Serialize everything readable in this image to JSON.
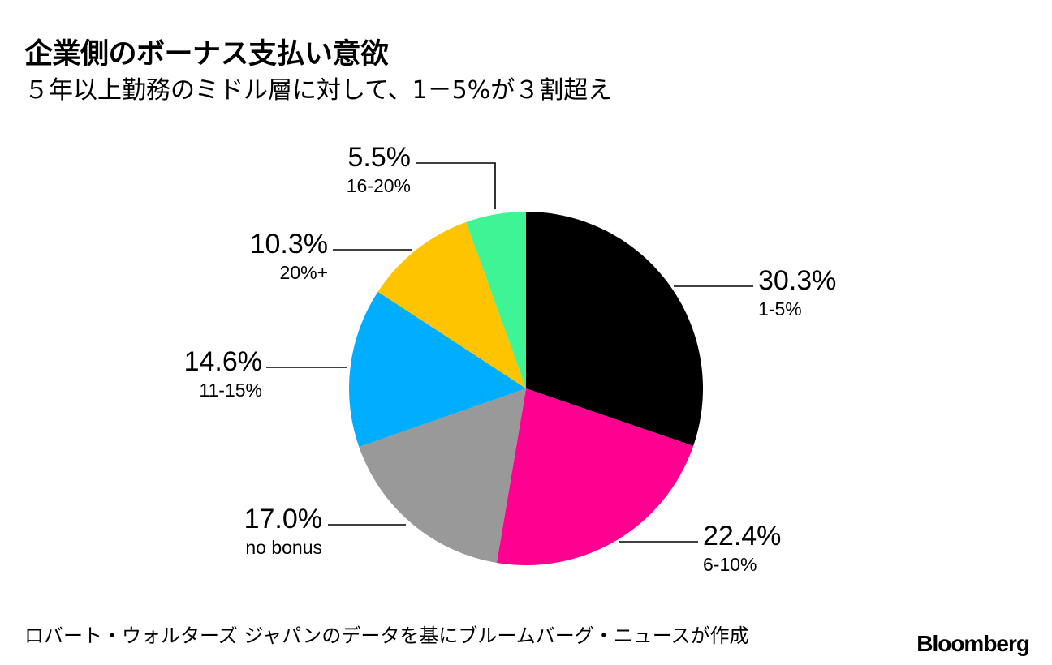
{
  "header": {
    "title": "企業側のボーナス支払い意欲",
    "subtitle": "５年以上勤務のミドル層に対して、1－5%が３割超え"
  },
  "chart_data": {
    "type": "pie",
    "start": "12 o'clock",
    "direction": "clockwise",
    "slices": [
      {
        "category": "1-5%",
        "value": 30.3,
        "label": "30.3%",
        "color": "#000000"
      },
      {
        "category": "6-10%",
        "value": 22.4,
        "label": "22.4%",
        "color": "#FF0090"
      },
      {
        "category": "no bonus",
        "value": 17.0,
        "label": "17.0%",
        "color": "#999999"
      },
      {
        "category": "11-15%",
        "value": 14.6,
        "label": "14.6%",
        "color": "#00ADFF"
      },
      {
        "category": "20%+",
        "value": 10.3,
        "label": "10.3%",
        "color": "#FFC400"
      },
      {
        "category": "16-20%",
        "value": 5.5,
        "label": "5.5%",
        "color": "#3EF494"
      }
    ]
  },
  "footer": {
    "source": "ロバート・ウォルターズ ジャパンのデータを基にブルームバーグ・ニュースが作成",
    "brand": "Bloomberg"
  }
}
